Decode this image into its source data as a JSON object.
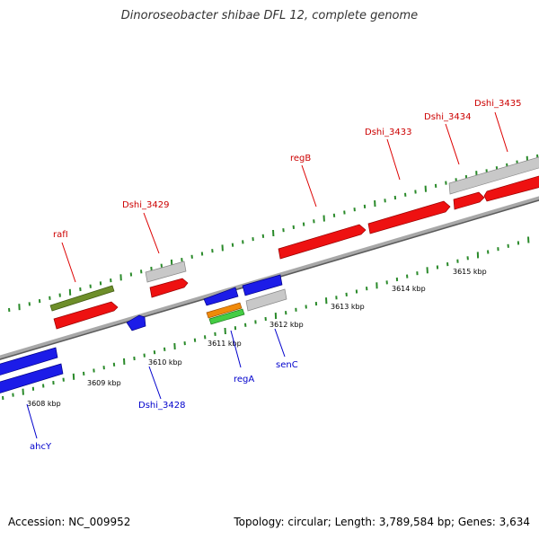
{
  "title": "Dinoroseobacter shibae DFL 12, complete genome",
  "footer": {
    "accession": "Accession: NC_009952",
    "stats": "Topology: circular; Length: 3,789,584 bp; Genes: 3,634"
  },
  "colors": {
    "forward_gene": "#ee1111",
    "reverse_gene": "#1c1ce8",
    "other_gene": "#c8c8c8",
    "rrna": "#6e8e2a",
    "orange": "#f08a0a",
    "green": "#44cc44",
    "tick": "#2a8a2a",
    "backbone": "#808080",
    "label_red": "#cc0000",
    "label_blue": "#0000cc"
  },
  "scale": {
    "unit": "kbp",
    "ticks": [
      "3608 kbp",
      "3609 kbp",
      "3610 kbp",
      "3611 kbp",
      "3612 kbp",
      "3613 kbp",
      "3614 kbp",
      "3615 kbp"
    ]
  },
  "gene_labels": [
    {
      "name": "rafI",
      "color": "red"
    },
    {
      "name": "Dshi_3429",
      "color": "red"
    },
    {
      "name": "regB",
      "color": "red"
    },
    {
      "name": "Dshi_3433",
      "color": "red"
    },
    {
      "name": "Dshi_3434",
      "color": "red"
    },
    {
      "name": "Dshi_3435",
      "color": "red"
    },
    {
      "name": "ahcY",
      "color": "blue"
    },
    {
      "name": "Dshi_3428",
      "color": "blue"
    },
    {
      "name": "regA",
      "color": "blue"
    },
    {
      "name": "senC",
      "color": "blue"
    }
  ]
}
